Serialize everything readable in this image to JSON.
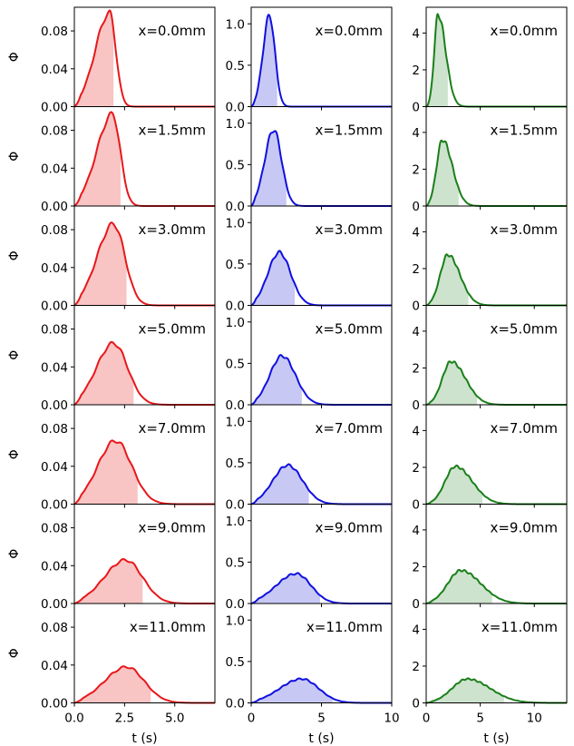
{
  "chart_data": {
    "type": "line",
    "layout": "7 rows x 3 columns of small panels",
    "row_labels": [
      "x=0.0mm",
      "x=1.5mm",
      "x=3.0mm",
      "x=5.0mm",
      "x=7.0mm",
      "x=9.0mm",
      "x=11.0mm"
    ],
    "columns": [
      {
        "color": "#e8171a",
        "fill_color": "#f8c4c4",
        "ylabel": "Φ",
        "xlabel": "t (s)",
        "xlim": [
          0,
          7
        ],
        "ylim": [
          0,
          0.105
        ],
        "xticks": [
          0,
          2.5,
          5
        ],
        "xtick_labels": [
          "0.0",
          "2.5",
          "5.0"
        ],
        "yticks": [
          0,
          0.04,
          0.08
        ],
        "ytick_labels": [
          "0.00",
          "0.04",
          "0.08"
        ],
        "rows": [
          {
            "peak_t": 1.75,
            "peak": 0.099,
            "rise_w": 1.0,
            "fall_w": 0.45,
            "shade_end": 1.95,
            "end_t": 4.2
          },
          {
            "peak_t": 1.9,
            "peak": 0.097,
            "rise_w": 1.1,
            "fall_w": 0.55,
            "shade_end": 2.3,
            "end_t": 4.6
          },
          {
            "peak_t": 1.95,
            "peak": 0.086,
            "rise_w": 1.15,
            "fall_w": 0.8,
            "shade_end": 2.6,
            "end_t": 5.6
          },
          {
            "peak_t": 1.95,
            "peak": 0.065,
            "rise_w": 1.2,
            "fall_w": 1.0,
            "shade_end": 2.95,
            "end_t": 6.1
          },
          {
            "peak_t": 2.05,
            "peak": 0.067,
            "rise_w": 1.25,
            "fall_w": 1.15,
            "shade_end": 3.15,
            "end_t": 6.6
          },
          {
            "peak_t": 2.55,
            "peak": 0.046,
            "rise_w": 1.5,
            "fall_w": 1.2,
            "shade_end": 3.4,
            "end_t": 7.0
          },
          {
            "peak_t": 2.6,
            "peak": 0.038,
            "rise_w": 1.55,
            "fall_w": 1.25,
            "shade_end": 3.8,
            "end_t": 7.0
          }
        ]
      },
      {
        "color": "#1010e0",
        "fill_color": "#c8c8f5",
        "ylabel": "",
        "xlabel": "t (s)",
        "xlim": [
          0,
          10
        ],
        "ylim": [
          0,
          1.2
        ],
        "xticks": [
          0,
          5,
          10
        ],
        "xtick_labels": [
          "0",
          "5",
          "10"
        ],
        "yticks": [
          0,
          0.5,
          1.0
        ],
        "ytick_labels": [
          "0.0",
          "0.5",
          "1.0"
        ],
        "rows": [
          {
            "peak_t": 1.3,
            "peak": 1.1,
            "rise_w": 0.65,
            "fall_w": 0.55,
            "shade_end": 1.85,
            "end_t": 3.6
          },
          {
            "peak_t": 1.6,
            "peak": 0.92,
            "rise_w": 0.9,
            "fall_w": 0.8,
            "shade_end": 2.5,
            "end_t": 4.6
          },
          {
            "peak_t": 2.0,
            "peak": 0.64,
            "rise_w": 1.15,
            "fall_w": 1.15,
            "shade_end": 3.1,
            "end_t": 5.6
          },
          {
            "peak_t": 2.2,
            "peak": 0.59,
            "rise_w": 1.25,
            "fall_w": 1.35,
            "shade_end": 3.6,
            "end_t": 6.6
          },
          {
            "peak_t": 2.6,
            "peak": 0.47,
            "rise_w": 1.5,
            "fall_w": 1.5,
            "shade_end": 4.1,
            "end_t": 7.6
          },
          {
            "peak_t": 3.2,
            "peak": 0.36,
            "rise_w": 2.0,
            "fall_w": 1.5,
            "shade_end": 4.9,
            "end_t": 8.6
          },
          {
            "peak_t": 3.6,
            "peak": 0.29,
            "rise_w": 2.2,
            "fall_w": 1.7,
            "shade_end": 5.8,
            "end_t": 10.0
          }
        ]
      },
      {
        "color": "#1a7f1a",
        "fill_color": "#cde3cd",
        "ylabel": "",
        "xlabel": "t (s)",
        "xlim": [
          0,
          13
        ],
        "ylim": [
          0,
          5.4
        ],
        "xticks": [
          0,
          5,
          10
        ],
        "xtick_labels": [
          "0",
          "5",
          "10"
        ],
        "yticks": [
          0,
          2,
          4
        ],
        "ytick_labels": [
          "0",
          "2",
          "4"
        ],
        "rows": [
          {
            "peak_t": 1.1,
            "peak": 5.0,
            "rise_w": 0.5,
            "fall_w": 1.0,
            "shade_end": 2.0,
            "end_t": 5.2
          },
          {
            "peak_t": 1.5,
            "peak": 3.6,
            "rise_w": 0.75,
            "fall_w": 1.3,
            "shade_end": 3.0,
            "end_t": 6.2
          },
          {
            "peak_t": 2.0,
            "peak": 2.75,
            "rise_w": 1.0,
            "fall_w": 1.6,
            "shade_end": 3.9,
            "end_t": 8.5
          },
          {
            "peak_t": 2.3,
            "peak": 2.35,
            "rise_w": 1.15,
            "fall_w": 1.9,
            "shade_end": 4.7,
            "end_t": 9.5
          },
          {
            "peak_t": 2.7,
            "peak": 2.05,
            "rise_w": 1.35,
            "fall_w": 2.2,
            "shade_end": 5.2,
            "end_t": 10.5
          },
          {
            "peak_t": 3.2,
            "peak": 1.8,
            "rise_w": 1.7,
            "fall_w": 2.6,
            "shade_end": 6.1,
            "end_t": 12.0
          },
          {
            "peak_t": 3.8,
            "peak": 1.3,
            "rise_w": 2.0,
            "fall_w": 3.0,
            "shade_end": 7.2,
            "end_t": 13.0
          }
        ]
      }
    ]
  }
}
